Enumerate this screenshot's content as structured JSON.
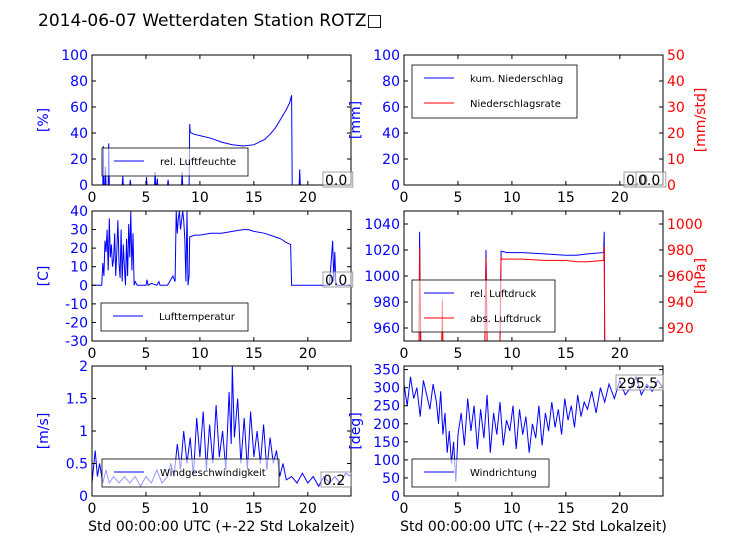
{
  "title": "2014-06-07 Wetterdaten Station ROTZ□",
  "chart_data": [
    {
      "id": "humidity",
      "type": "line",
      "title": "",
      "xlabel": "",
      "ylabel": "[%]",
      "xlim": [
        0,
        24
      ],
      "ylim": [
        0,
        100
      ],
      "xticks": [
        0,
        5,
        10,
        15,
        20
      ],
      "yticks": [
        0,
        20,
        40,
        60,
        80,
        100
      ],
      "value_label": "0.0",
      "legend_position": "lower-center",
      "series": [
        {
          "name": "rel. Luftfeuchte",
          "color": "#0000ff",
          "x": [
            0,
            1.0,
            1.05,
            1.1,
            1.2,
            1.25,
            1.3,
            1.5,
            1.55,
            1.6,
            2.8,
            2.85,
            2.9,
            3.5,
            3.55,
            3.6,
            5.0,
            5.05,
            5.1,
            5.8,
            5.85,
            5.9,
            6.0,
            6.05,
            6.1,
            7.0,
            7.05,
            7.1,
            8.3,
            8.35,
            8.4,
            9.0,
            9.05,
            9.1,
            9.2,
            9.5,
            10.0,
            11.0,
            12.0,
            13.0,
            14.0,
            15.0,
            15.5,
            16.0,
            16.5,
            17.0,
            17.5,
            18.0,
            18.3,
            18.5,
            18.55,
            18.6,
            19.2,
            19.25,
            19.3,
            24
          ],
          "y": [
            0,
            0,
            30,
            0,
            0,
            14,
            0,
            0,
            32,
            0,
            0,
            7,
            0,
            0,
            4,
            0,
            0,
            6,
            0,
            0,
            10,
            0,
            0,
            5,
            0,
            0,
            4,
            0,
            0,
            10,
            0,
            0,
            47,
            41,
            40,
            39,
            38,
            36,
            33,
            31,
            30,
            31,
            33,
            35,
            39,
            44,
            51,
            58,
            63,
            69,
            0,
            0,
            0,
            12,
            0,
            0
          ]
        }
      ]
    },
    {
      "id": "precipitation",
      "type": "line",
      "title": "",
      "xlabel": "",
      "ylabel": "[mm]",
      "ylabel_right": "[mm/std]",
      "xlim": [
        0,
        24
      ],
      "ylim": [
        0,
        100
      ],
      "ylim_right": [
        0,
        50
      ],
      "xticks": [
        0,
        5,
        10,
        15,
        20
      ],
      "yticks": [
        0,
        20,
        40,
        60,
        80,
        100
      ],
      "yticks_right": [
        0,
        10,
        20,
        30,
        40,
        50
      ],
      "value_label": "0.0",
      "value_label2": "0.0",
      "legend_position": "upper-left",
      "series": [
        {
          "name": "kum. Niederschlag",
          "color": "#0000ff",
          "axis": "left",
          "x": [
            0,
            18.5
          ],
          "y": [
            0,
            0
          ]
        },
        {
          "name": "Niederschlagsrate",
          "color": "#ff0000",
          "axis": "right",
          "x": [
            0,
            24
          ],
          "y": [
            0,
            0
          ]
        }
      ]
    },
    {
      "id": "temperature",
      "type": "line",
      "title": "",
      "xlabel": "",
      "ylabel": "[C]",
      "xlim": [
        0,
        24
      ],
      "ylim": [
        -30,
        40
      ],
      "xticks": [
        0,
        5,
        10,
        15,
        20
      ],
      "yticks": [
        -30,
        -20,
        -10,
        0,
        10,
        20,
        30,
        40
      ],
      "value_label": "0.0",
      "legend_position": "lower-center",
      "series": [
        {
          "name": "Lufttemperatur",
          "color": "#0000ff",
          "x": [
            0,
            0.9,
            1.0,
            1.1,
            1.2,
            1.3,
            1.4,
            1.5,
            1.6,
            1.7,
            1.8,
            1.9,
            2.0,
            2.1,
            2.2,
            2.3,
            2.4,
            2.5,
            2.6,
            2.7,
            2.8,
            2.9,
            3.0,
            3.1,
            3.2,
            3.3,
            3.4,
            3.5,
            3.6,
            3.7,
            3.8,
            3.9,
            4.0,
            4.2,
            5.0,
            5.1,
            5.2,
            5.5,
            6.0,
            6.2,
            6.3,
            7.0,
            7.5,
            7.7,
            7.8,
            7.9,
            8.0,
            8.1,
            8.2,
            8.4,
            8.5,
            8.6,
            8.7,
            8.8,
            8.9,
            9.0,
            9.05,
            9.5,
            10,
            11,
            12,
            13,
            14,
            14.5,
            15,
            16,
            17,
            17.5,
            18.0,
            18.4,
            18.5,
            18.6,
            19,
            20,
            21,
            22,
            22.3,
            22.4,
            22.5,
            22.6,
            22.7,
            24
          ],
          "y": [
            0,
            0,
            12,
            5,
            24,
            18,
            30,
            8,
            36,
            15,
            22,
            10,
            14,
            28,
            5,
            18,
            35,
            12,
            4,
            30,
            2,
            22,
            10,
            0,
            25,
            5,
            33,
            15,
            40,
            8,
            28,
            0,
            2,
            0,
            0,
            3,
            0,
            1,
            0,
            2,
            0,
            0,
            5,
            2,
            40,
            28,
            36,
            40,
            30,
            40,
            35,
            25,
            2,
            40,
            0,
            5,
            26,
            27,
            27,
            28,
            28,
            29,
            30,
            30,
            29,
            28,
            26,
            25,
            23,
            22,
            0,
            0,
            0,
            0,
            0,
            0,
            24,
            2,
            18,
            0,
            0,
            0
          ]
        }
      ]
    },
    {
      "id": "pressure",
      "type": "line",
      "title": "",
      "xlabel": "",
      "ylabel": "",
      "ylabel_right": "[hPa]",
      "xlim": [
        0,
        24
      ],
      "ylim": [
        950,
        1050
      ],
      "ylim_right": [
        910,
        1010
      ],
      "xticks": [
        0,
        5,
        10,
        15,
        20
      ],
      "yticks": [
        960,
        980,
        1000,
        1020,
        1040
      ],
      "yticks_right": [
        920,
        940,
        960,
        980,
        1000
      ],
      "legend_position": "lower-left",
      "series": [
        {
          "name": "rel. Luftdruck",
          "color": "#0000ff",
          "axis": "left",
          "x": [
            0,
            1.4,
            1.45,
            1.55,
            1.6,
            3.5,
            3.55,
            3.6,
            7.5,
            7.6,
            7.7,
            8.9,
            9.0,
            9.1,
            9.5,
            11,
            13,
            15,
            16,
            17,
            18.5,
            18.55,
            18.6,
            24
          ],
          "y": [
            950,
            950,
            1034,
            950,
            950,
            950,
            950,
            950,
            950,
            1020,
            950,
            950,
            1019,
            1019,
            1018,
            1018,
            1017,
            1016,
            1016,
            1017,
            1018,
            1034,
            950,
            950
          ]
        },
        {
          "name": "abs. Luftdruck",
          "color": "#ff0000",
          "axis": "right",
          "x": [
            0,
            1.4,
            1.45,
            1.55,
            1.6,
            3.5,
            3.55,
            3.6,
            7.5,
            7.6,
            7.7,
            8.9,
            9.0,
            9.1,
            11,
            13,
            15,
            16,
            17,
            18.5,
            18.55,
            18.6,
            24
          ],
          "y": [
            910,
            910,
            982,
            910,
            910,
            910,
            942,
            910,
            910,
            974,
            910,
            910,
            974,
            973,
            973,
            972,
            972,
            971,
            971,
            972,
            983,
            910,
            910
          ]
        }
      ]
    },
    {
      "id": "windspeed",
      "type": "line",
      "title": "",
      "xlabel": "Std 00:00:00 UTC (+-22 Std Lokalzeit)",
      "ylabel": "[m/s]",
      "xlim": [
        0,
        24
      ],
      "ylim": [
        0,
        2
      ],
      "xticks": [
        0,
        5,
        10,
        15,
        20
      ],
      "yticks": [
        0,
        0.5,
        1,
        1.5,
        2
      ],
      "value_label": "0.2",
      "legend_position": "lower-center",
      "series": [
        {
          "name": "Windgeschwindigkeit",
          "color": "#0000ff",
          "x": [
            0,
            0.3,
            0.5,
            0.7,
            1.0,
            1.3,
            1.6,
            2,
            2.5,
            3,
            3.5,
            4,
            4.5,
            5,
            5.5,
            6,
            6.5,
            7,
            7.3,
            7.6,
            7.9,
            8.2,
            8.5,
            8.8,
            9.1,
            9.4,
            9.7,
            10,
            10.3,
            10.6,
            10.9,
            11.2,
            11.5,
            11.8,
            12.1,
            12.4,
            12.7,
            12.9,
            13.0,
            13.2,
            13.5,
            13.8,
            14.1,
            14.4,
            14.7,
            15,
            15.3,
            15.6,
            15.9,
            16.2,
            16.5,
            16.8,
            17.1,
            17.4,
            17.7,
            18,
            18.5,
            19,
            19.5,
            20,
            20.5,
            21,
            21.5,
            22,
            22.5,
            23,
            23.5,
            24
          ],
          "y": [
            0.2,
            0.7,
            0.3,
            0.5,
            0.2,
            0.4,
            0.2,
            0.3,
            0.2,
            0.3,
            0.2,
            0.3,
            0.15,
            0.3,
            0.2,
            0.4,
            0.2,
            0.3,
            0.5,
            0.3,
            0.8,
            0.4,
            1.0,
            0.5,
            0.9,
            0.3,
            1.2,
            0.6,
            1.3,
            0.4,
            1.1,
            0.5,
            1.4,
            0.6,
            1.0,
            0.4,
            1.6,
            0.8,
            2.0,
            0.9,
            1.5,
            0.5,
            1.2,
            0.4,
            1.3,
            0.6,
            1.0,
            0.5,
            1.1,
            0.4,
            0.9,
            0.5,
            0.7,
            0.3,
            0.5,
            0.25,
            0.3,
            0.2,
            0.35,
            0.2,
            0.3,
            0.15,
            0.3,
            0.2,
            0.3,
            0.2,
            0.35,
            0.3
          ]
        }
      ]
    },
    {
      "id": "winddirection",
      "type": "line",
      "title": "",
      "xlabel": "Std 00:00:00 UTC (+-22 Std Lokalzeit)",
      "ylabel": "[deg]",
      "xlim": [
        0,
        24
      ],
      "ylim": [
        0,
        360
      ],
      "xticks": [
        0,
        5,
        10,
        15,
        20
      ],
      "yticks": [
        0,
        50,
        100,
        150,
        200,
        250,
        300,
        350
      ],
      "value_label": "295.5",
      "legend_position": "lower-left",
      "series": [
        {
          "name": "Windrichtung",
          "color": "#0000ff",
          "x": [
            0,
            0.3,
            0.6,
            0.9,
            1.2,
            1.5,
            1.8,
            2.1,
            2.4,
            2.7,
            3.0,
            3.2,
            3.4,
            3.6,
            3.8,
            4.0,
            4.2,
            4.4,
            4.6,
            4.8,
            5.0,
            5.3,
            5.6,
            5.9,
            6.2,
            6.5,
            6.8,
            7.1,
            7.4,
            7.7,
            8.0,
            8.3,
            8.6,
            8.9,
            9.2,
            9.5,
            9.8,
            10.1,
            10.4,
            10.7,
            11.0,
            11.3,
            11.6,
            11.9,
            12.2,
            12.5,
            12.8,
            13.1,
            13.4,
            13.7,
            14.0,
            14.3,
            14.6,
            14.9,
            15.2,
            15.5,
            15.8,
            16.1,
            16.4,
            16.7,
            17.0,
            17.4,
            17.8,
            18.2,
            18.6,
            19.0,
            19.5,
            20.0,
            20.5,
            21.0,
            21.5,
            22.0,
            22.5,
            23.0,
            23.5,
            24.0
          ],
          "y": [
            310,
            250,
            330,
            270,
            300,
            220,
            320,
            280,
            240,
            310,
            260,
            200,
            290,
            170,
            230,
            120,
            180,
            90,
            150,
            40,
            170,
            230,
            140,
            270,
            180,
            250,
            130,
            240,
            160,
            280,
            120,
            230,
            170,
            260,
            140,
            210,
            180,
            250,
            130,
            240,
            170,
            220,
            120,
            200,
            160,
            250,
            140,
            230,
            180,
            260,
            190,
            240,
            170,
            270,
            210,
            250,
            190,
            280,
            220,
            260,
            240,
            290,
            230,
            300,
            260,
            310,
            270,
            320,
            280,
            300,
            330,
            280,
            310,
            290,
            320,
            300
          ]
        }
      ]
    }
  ]
}
